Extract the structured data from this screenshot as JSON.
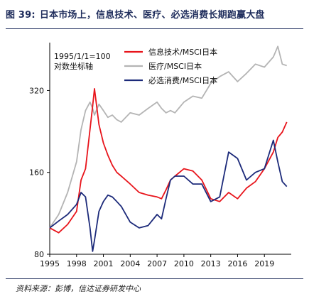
{
  "figure": {
    "number": "图 39:",
    "title": "日本市场上，信息技术、医疗、必选消费长期跑赢大盘",
    "source": "资料来源：彭博，信达证券研发中心"
  },
  "chart_data": {
    "type": "line",
    "title": "日本市场上，信息技术、医疗、必选消费长期跑赢大盘",
    "xlabel": "",
    "ylabel": "",
    "annotation": [
      "1995/1/1=100",
      "对数坐标轴"
    ],
    "y_scale": "log",
    "ylim": [
      80,
      480
    ],
    "yticks": [
      80,
      160,
      320
    ],
    "x_range": [
      1995,
      2022
    ],
    "xticks": [
      "1995",
      "1998",
      "2001",
      "2004",
      "2007",
      "2010",
      "2013",
      "2016",
      "2019"
    ],
    "grid": false,
    "legend_position": "top-right",
    "colors": {
      "it": "#e8141b",
      "health": "#b4b4b4",
      "staples": "#1c2a7a",
      "title": "#1f2d5c"
    },
    "x": [
      1995.0,
      1996.0,
      1997.0,
      1998.0,
      1998.5,
      1999.0,
      1999.5,
      1999.8,
      2000.0,
      2000.5,
      2001.0,
      2001.5,
      2002.0,
      2002.5,
      2003.0,
      2004.0,
      2005.0,
      2006.0,
      2007.0,
      2007.5,
      2008.0,
      2008.5,
      2009.0,
      2010.0,
      2011.0,
      2012.0,
      2013.0,
      2014.0,
      2015.0,
      2016.0,
      2017.0,
      2018.0,
      2019.0,
      2020.0,
      2020.5,
      2021.0,
      2021.5
    ],
    "series": [
      {
        "name": "信息技术/MSCI日本",
        "key": "it",
        "values": [
          100,
          96,
          103,
          115,
          150,
          165,
          230,
          280,
          325,
          240,
          205,
          185,
          170,
          160,
          155,
          145,
          135,
          132,
          130,
          128,
          138,
          150,
          155,
          165,
          162,
          150,
          128,
          125,
          135,
          128,
          140,
          148,
          165,
          190,
          215,
          225,
          245
        ]
      },
      {
        "name": "医疗/MSCI日本",
        "key": "health",
        "values": [
          100,
          112,
          135,
          175,
          230,
          270,
          290,
          275,
          260,
          285,
          270,
          255,
          260,
          250,
          245,
          265,
          260,
          275,
          290,
          275,
          265,
          270,
          265,
          290,
          305,
          300,
          340,
          360,
          375,
          345,
          370,
          400,
          390,
          425,
          465,
          400,
          395
        ]
      },
      {
        "name": "必选消费/MSCI日本",
        "key": "staples",
        "values": [
          100,
          106,
          112,
          122,
          135,
          130,
          100,
          82,
          90,
          115,
          125,
          132,
          130,
          125,
          120,
          105,
          100,
          102,
          112,
          108,
          128,
          150,
          155,
          155,
          145,
          145,
          125,
          130,
          190,
          180,
          150,
          160,
          165,
          210,
          175,
          148,
          142
        ]
      }
    ]
  }
}
